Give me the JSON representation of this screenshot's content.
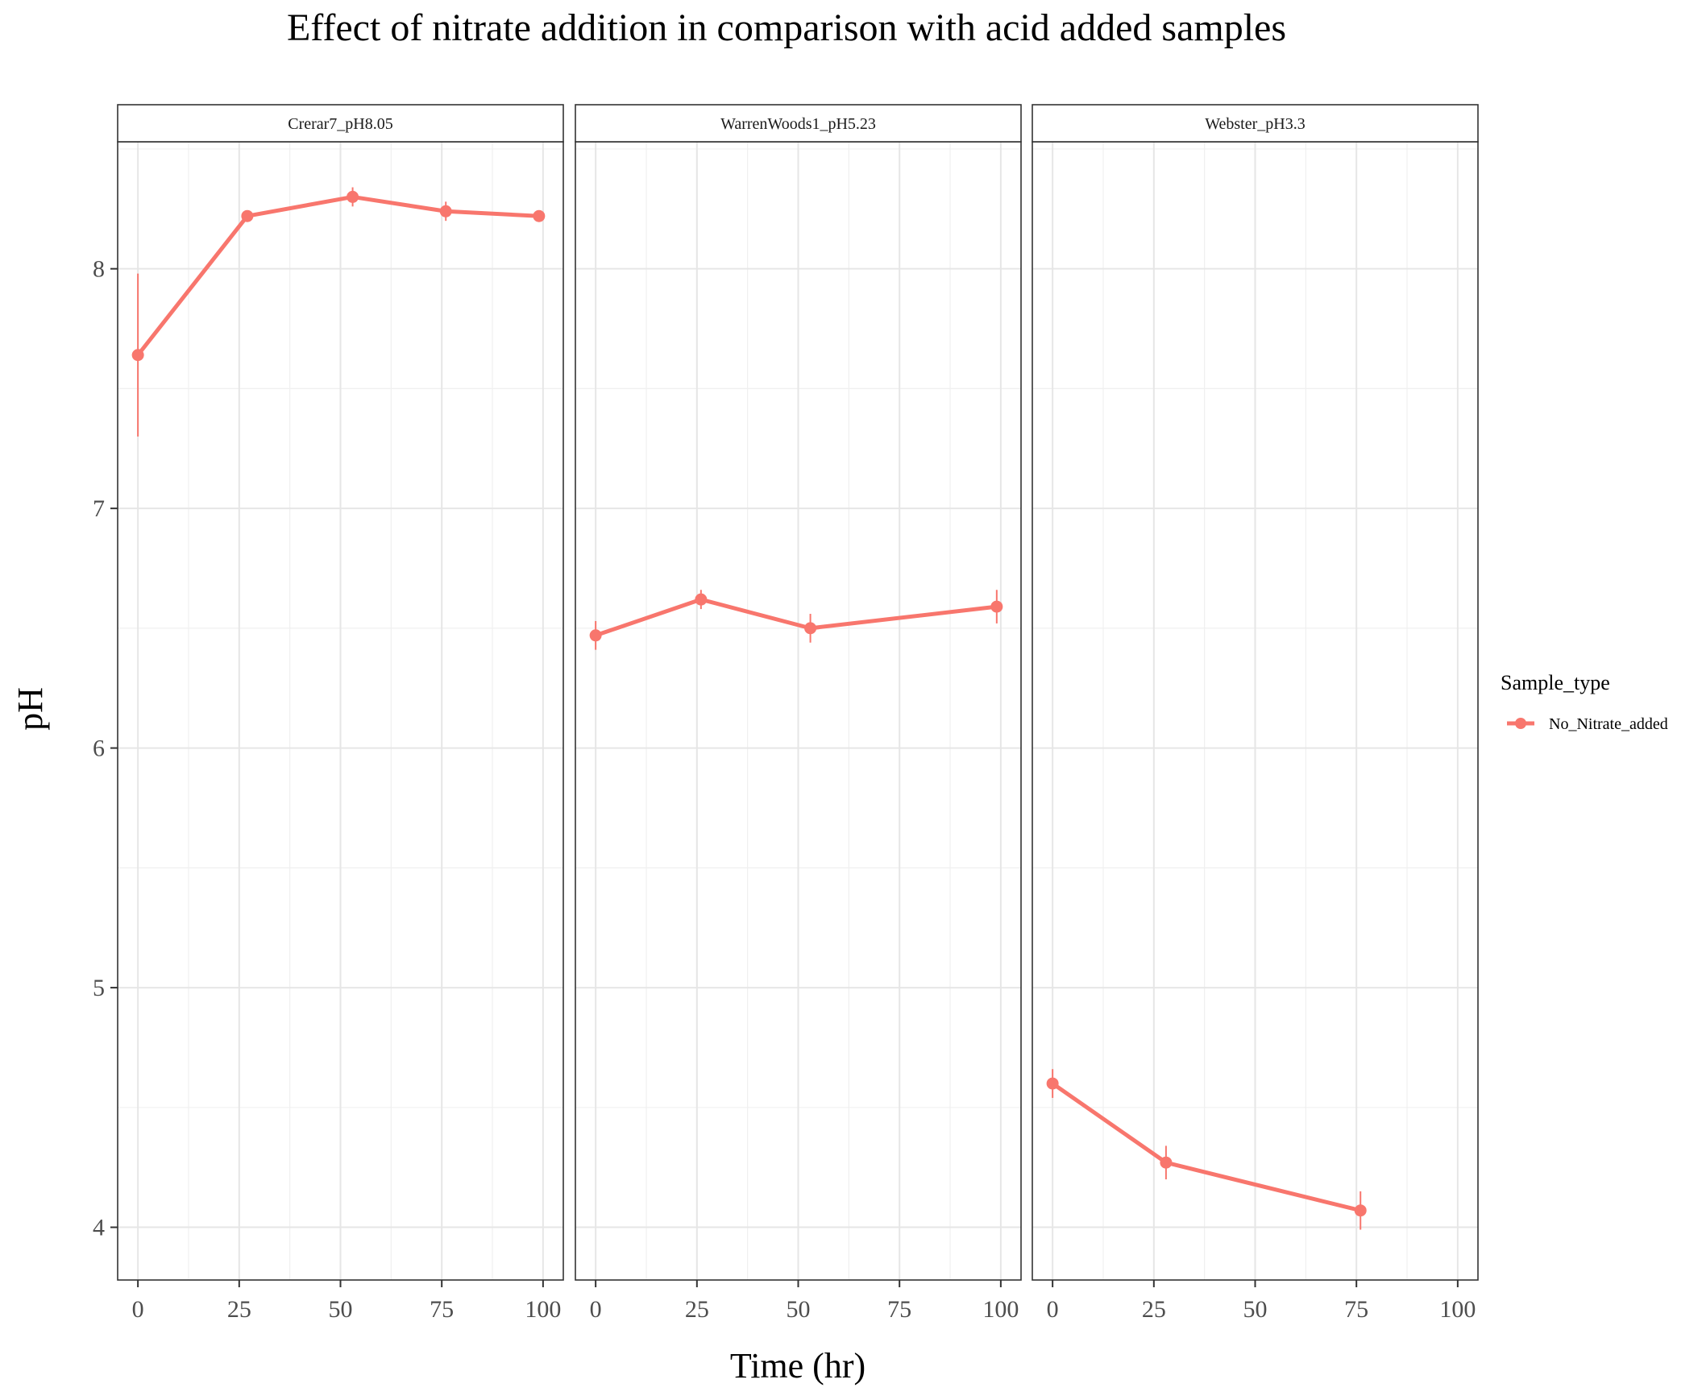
{
  "chart_data": {
    "type": "line",
    "title": "Effect of nitrate addition in comparison with acid added samples",
    "xlabel": "Time (hr)",
    "ylabel": "pH",
    "xlim": [
      -5,
      105
    ],
    "ylim": [
      3.78,
      8.53
    ],
    "x_ticks": [
      0,
      25,
      50,
      75,
      100
    ],
    "y_ticks": [
      4,
      5,
      6,
      7,
      8
    ],
    "grid": true,
    "legend": {
      "title": "Sample_type",
      "position": "right",
      "entries": [
        "No_Nitrate_added"
      ]
    },
    "series_color": "#F8766D",
    "panels": [
      {
        "label": "Crerar7_pH8.05",
        "series": [
          {
            "name": "No_Nitrate_added",
            "x": [
              0,
              27,
              53,
              76,
              99
            ],
            "y": [
              7.64,
              8.22,
              8.3,
              8.24,
              8.22
            ],
            "error": [
              0.34,
              0.02,
              0.04,
              0.04,
              0.02
            ]
          }
        ]
      },
      {
        "label": "WarrenWoods1_pH5.23",
        "series": [
          {
            "name": "No_Nitrate_added",
            "x": [
              0,
              26,
              53,
              99
            ],
            "y": [
              6.47,
              6.62,
              6.5,
              6.59
            ],
            "error": [
              0.06,
              0.04,
              0.06,
              0.07
            ]
          }
        ]
      },
      {
        "label": "Webster_pH3.3",
        "series": [
          {
            "name": "No_Nitrate_added",
            "x": [
              0,
              28,
              76
            ],
            "y": [
              4.6,
              4.27,
              4.07
            ],
            "error": [
              0.06,
              0.07,
              0.08
            ]
          }
        ]
      }
    ]
  }
}
